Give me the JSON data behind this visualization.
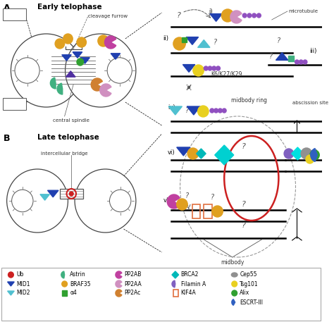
{
  "bg_color": "#ffffff",
  "panel_A_title": "Early telophase",
  "panel_B_title": "Late telophase",
  "label_MID1": "MID1",
  "label_MID2": "MID2",
  "label_cleavage": "cleavage furrow",
  "label_central": "central spindle",
  "label_bridge": "intercellular bridge",
  "label_microtubule": "microtubule",
  "label_K6": "K6/K27/K29",
  "label_midbody_ring": "midbody ring",
  "label_abscission": "abscission site",
  "label_midbody": "midbody",
  "colors": {
    "MID1_tri": "#2040b0",
    "MID2_tri": "#50c0d0",
    "BRAF35": "#e0a020",
    "PP2AB": "#c040a0",
    "PP2AA": "#d090c0",
    "PP2Ac": "#d08030",
    "astrin": "#40b080",
    "a4": "#30a030",
    "ub_red": "#cc2020",
    "ub_dot": "#9050c0",
    "BRCA2": "#00b8b8",
    "KIF4A": "#e07040",
    "Cep55": "#909090",
    "Tsg101": "#e8d020",
    "Alix": "#30a030",
    "ESCRT3": "#3060c0",
    "filamin": "#8060c0",
    "orange_small": "#e0a020",
    "green_hex": "#30a030",
    "yellow_small": "#e8d020"
  }
}
